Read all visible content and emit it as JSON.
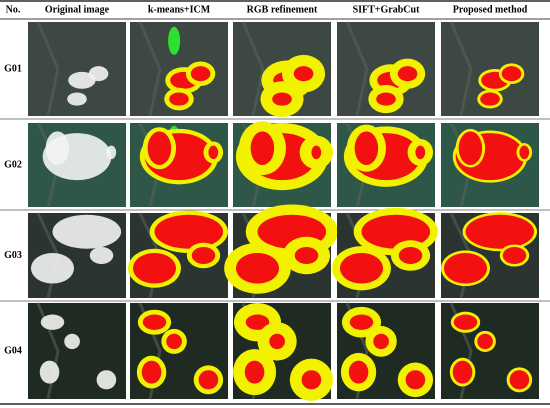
{
  "header": {
    "columns": [
      "No.",
      "Original image",
      "k-means+ICM",
      "RGB refinement",
      "SIFT+GrabCut",
      "Proposed method"
    ]
  },
  "rows": [
    "G01",
    "G02",
    "G03",
    "G04"
  ]
}
